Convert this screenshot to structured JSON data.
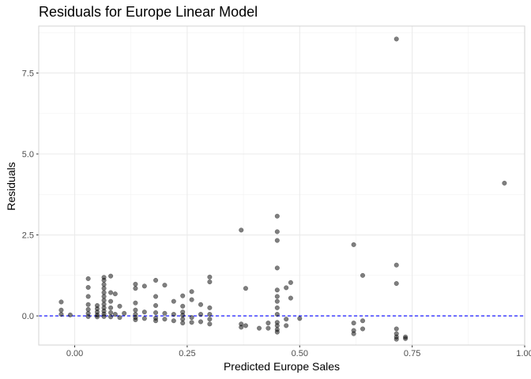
{
  "chart_data": {
    "type": "scatter",
    "title": "Residuals for Europe Linear Model",
    "xlabel": "Predicted Europe Sales",
    "ylabel": "Residuals",
    "xlim": [
      -0.08,
      1.0
    ],
    "ylim": [
      -0.9,
      8.95
    ],
    "x_ticks": [
      0.0,
      0.25,
      0.5,
      0.75,
      1.0
    ],
    "x_tick_labels": [
      "0.00",
      "0.25",
      "0.50",
      "0.75",
      "1.00"
    ],
    "y_ticks": [
      0.0,
      2.5,
      5.0,
      7.5
    ],
    "y_tick_labels": [
      "0.0",
      "2.5",
      "5.0",
      "7.5"
    ],
    "reference_line": {
      "y": 0,
      "style": "dashed",
      "color": "#0000ff"
    },
    "grid": true,
    "point_color": "#000000",
    "point_opacity": 0.5,
    "points": [
      [
        -0.03,
        0.43
      ],
      [
        -0.03,
        0.18
      ],
      [
        -0.03,
        0.05
      ],
      [
        -0.01,
        0.03
      ],
      [
        0.03,
        1.15
      ],
      [
        0.03,
        0.88
      ],
      [
        0.03,
        0.6
      ],
      [
        0.03,
        0.35
      ],
      [
        0.03,
        0.2
      ],
      [
        0.03,
        0.08
      ],
      [
        0.03,
        -0.02
      ],
      [
        0.05,
        0.32
      ],
      [
        0.05,
        0.22
      ],
      [
        0.05,
        0.12
      ],
      [
        0.05,
        0.03
      ],
      [
        0.05,
        -0.03
      ],
      [
        0.065,
        1.19
      ],
      [
        0.065,
        1.1
      ],
      [
        0.065,
        0.97
      ],
      [
        0.065,
        0.85
      ],
      [
        0.065,
        0.72
      ],
      [
        0.065,
        0.6
      ],
      [
        0.065,
        0.48
      ],
      [
        0.065,
        0.36
      ],
      [
        0.065,
        0.25
      ],
      [
        0.065,
        0.15
      ],
      [
        0.065,
        0.06
      ],
      [
        0.065,
        -0.02
      ],
      [
        0.08,
        1.23
      ],
      [
        0.08,
        0.72
      ],
      [
        0.08,
        0.45
      ],
      [
        0.08,
        0.25
      ],
      [
        0.08,
        0.1
      ],
      [
        0.08,
        -0.03
      ],
      [
        0.09,
        0.68
      ],
      [
        0.09,
        0.05
      ],
      [
        0.1,
        0.3
      ],
      [
        0.1,
        -0.05
      ],
      [
        0.11,
        0.08
      ],
      [
        0.135,
        0.98
      ],
      [
        0.135,
        0.85
      ],
      [
        0.135,
        0.4
      ],
      [
        0.135,
        0.18
      ],
      [
        0.135,
        0.05
      ],
      [
        0.135,
        -0.05
      ],
      [
        0.135,
        -0.12
      ],
      [
        0.155,
        0.92
      ],
      [
        0.155,
        0.12
      ],
      [
        0.155,
        -0.08
      ],
      [
        0.18,
        1.1
      ],
      [
        0.18,
        0.6
      ],
      [
        0.18,
        0.32
      ],
      [
        0.18,
        0.1
      ],
      [
        0.18,
        -0.07
      ],
      [
        0.18,
        -0.15
      ],
      [
        0.2,
        0.95
      ],
      [
        0.2,
        0.08
      ],
      [
        0.2,
        -0.1
      ],
      [
        0.22,
        0.45
      ],
      [
        0.22,
        0.05
      ],
      [
        0.22,
        -0.15
      ],
      [
        0.24,
        0.62
      ],
      [
        0.24,
        0.3
      ],
      [
        0.24,
        0.12
      ],
      [
        0.24,
        0.02
      ],
      [
        0.24,
        -0.1
      ],
      [
        0.24,
        -0.22
      ],
      [
        0.26,
        0.75
      ],
      [
        0.26,
        0.5
      ],
      [
        0.26,
        -0.05
      ],
      [
        0.26,
        -0.2
      ],
      [
        0.28,
        0.35
      ],
      [
        0.28,
        0.05
      ],
      [
        0.28,
        -0.18
      ],
      [
        0.3,
        1.2
      ],
      [
        0.3,
        1.05
      ],
      [
        0.3,
        0.25
      ],
      [
        0.3,
        0.05
      ],
      [
        0.3,
        -0.1
      ],
      [
        0.3,
        -0.25
      ],
      [
        0.37,
        2.65
      ],
      [
        0.37,
        -0.25
      ],
      [
        0.37,
        -0.35
      ],
      [
        0.38,
        0.85
      ],
      [
        0.38,
        -0.3
      ],
      [
        0.41,
        -0.38
      ],
      [
        0.43,
        -0.38
      ],
      [
        0.43,
        -0.22
      ],
      [
        0.45,
        3.08
      ],
      [
        0.45,
        2.6
      ],
      [
        0.45,
        2.33
      ],
      [
        0.45,
        1.48
      ],
      [
        0.45,
        0.8
      ],
      [
        0.45,
        0.6
      ],
      [
        0.45,
        0.45
      ],
      [
        0.45,
        0.25
      ],
      [
        0.45,
        0.05
      ],
      [
        0.45,
        -0.2
      ],
      [
        0.45,
        -0.3
      ],
      [
        0.45,
        -0.42
      ],
      [
        0.45,
        -0.5
      ],
      [
        0.47,
        0.87
      ],
      [
        0.47,
        -0.1
      ],
      [
        0.47,
        -0.3
      ],
      [
        0.48,
        1.03
      ],
      [
        0.48,
        0.55
      ],
      [
        0.5,
        -0.08
      ],
      [
        0.62,
        2.2
      ],
      [
        0.62,
        -0.22
      ],
      [
        0.62,
        -0.45
      ],
      [
        0.62,
        -0.55
      ],
      [
        0.64,
        1.25
      ],
      [
        0.64,
        -0.15
      ],
      [
        0.64,
        -0.4
      ],
      [
        0.715,
        8.55
      ],
      [
        0.715,
        1.57
      ],
      [
        0.715,
        1.0
      ],
      [
        0.715,
        -0.4
      ],
      [
        0.715,
        -0.55
      ],
      [
        0.715,
        -0.65
      ],
      [
        0.715,
        -0.72
      ],
      [
        0.735,
        -0.65
      ],
      [
        0.735,
        -0.7
      ],
      [
        0.955,
        4.1
      ]
    ]
  }
}
